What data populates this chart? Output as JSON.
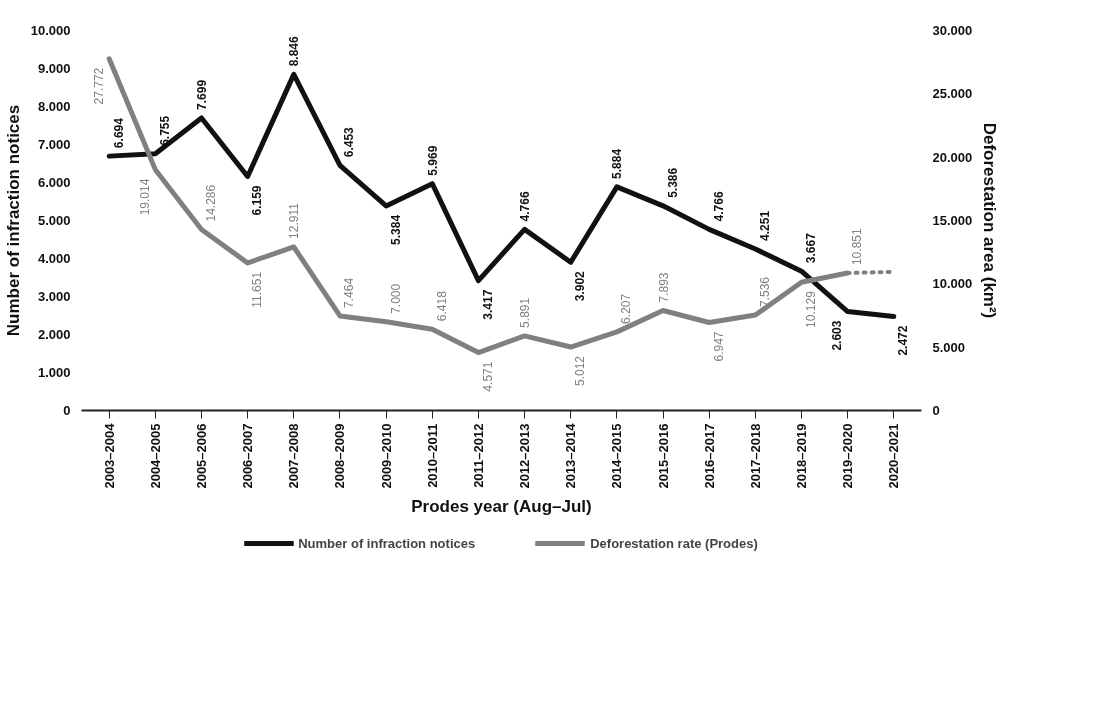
{
  "chart_data": {
    "type": "line",
    "xlabel": "Prodes year (Aug–Jul)",
    "ylabel": "Number of infraction notices",
    "y2label": "Deforestation area (km²)",
    "categories": [
      "2003–2004",
      "2004–2005",
      "2005–2006",
      "2006–2007",
      "2007–2008",
      "2008–2009",
      "2009–2010",
      "2010–2011",
      "2011–2012",
      "2012–2013",
      "2013–2014",
      "2014–2015",
      "2015–2016",
      "2016–2017",
      "2017–2018",
      "2018–2019",
      "2019–2020",
      "2020–2021"
    ],
    "ylim": [
      0,
      10000
    ],
    "yticks": [
      0,
      {
        "value": 1000,
        "label": "1.000"
      },
      {
        "value": 2000,
        "label": "2.000"
      },
      {
        "value": 3000,
        "label": "3.000"
      },
      {
        "value": 4000,
        "label": "4.000"
      },
      {
        "value": 5000,
        "label": "5.000"
      },
      {
        "value": 6000,
        "label": "6.000"
      },
      {
        "value": 7000,
        "label": "7.000"
      },
      {
        "value": 8000,
        "label": "8.000"
      },
      {
        "value": 9000,
        "label": "9.000"
      },
      {
        "value": 10000,
        "label": "10.000"
      }
    ],
    "y2lim": [
      0,
      30000
    ],
    "y2ticks": [
      0,
      {
        "value": 5000,
        "label": "5.000"
      },
      {
        "value": 10000,
        "label": "10.000"
      },
      {
        "value": 15000,
        "label": "15.000"
      },
      {
        "value": 20000,
        "label": "20.000"
      },
      {
        "value": 25000,
        "label": "25.000"
      },
      {
        "value": 30000,
        "label": "30.000"
      }
    ],
    "grid": false,
    "legend": "bottom",
    "series": [
      {
        "name": "Number of infraction notices",
        "color": "#111111",
        "values": [
          6694,
          6755,
          7699,
          6159,
          8846,
          6453,
          5384,
          5969,
          3417,
          4766,
          3902,
          5884,
          5386,
          4766,
          4251,
          3667,
          2603,
          2472
        ],
        "value_labels": [
          "6.694",
          "6.755",
          "7.699",
          "6.159",
          "8.846",
          "6.453",
          "5.384",
          "5.969",
          "3.417",
          "4.766",
          "3.902",
          "5.884",
          "5.386",
          "4.766",
          "4.251",
          "3.667",
          "2.603",
          "2.472"
        ]
      },
      {
        "name": "Deforestation rate (Prodes)",
        "color": "#808080",
        "axis": "y2",
        "values": [
          27772,
          19014,
          14286,
          11651,
          12911,
          7464,
          7000,
          6418,
          4571,
          5891,
          5012,
          6207,
          7893,
          6947,
          7536,
          10129,
          10851,
          null
        ],
        "value_labels": [
          "27.772",
          "19.014",
          "14.286",
          "11.651",
          "12.911",
          "7.464",
          "7.000",
          "6.418",
          "4.571",
          "5.891",
          "5.012",
          "6.207",
          "7.893",
          "6.947",
          "7.536",
          "10.129",
          "10.851",
          null
        ]
      },
      {
        "color": "#808080",
        "axis": "y2",
        "line_style": "dotted",
        "values": [
          null,
          null,
          null,
          null,
          null,
          null,
          null,
          null,
          null,
          null,
          null,
          null,
          null,
          null,
          null,
          null,
          10851,
          10950
        ]
      }
    ]
  }
}
